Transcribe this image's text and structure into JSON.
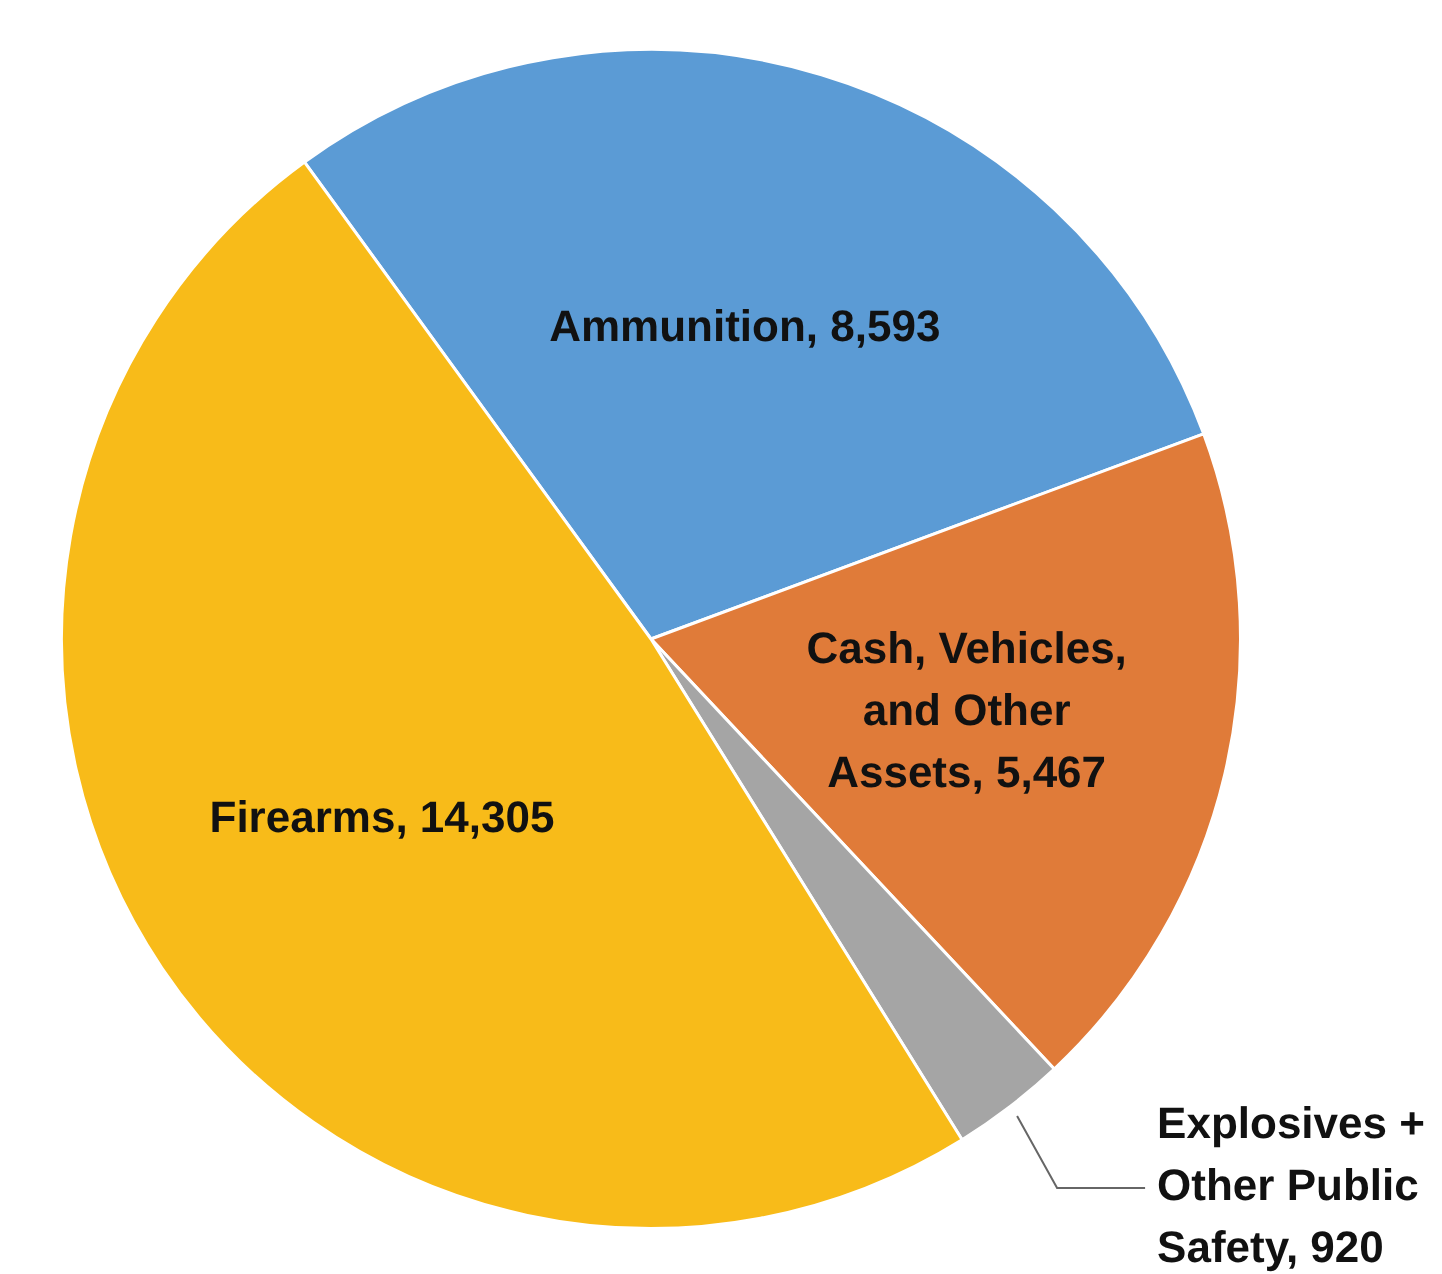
{
  "chart_data": {
    "type": "pie",
    "categories": [
      "Ammunition",
      "Cash, Vehicles, and Other Assets",
      "Explosives + Other Public Safety",
      "Firearms"
    ],
    "value_labels": [
      "8,593",
      "5,467",
      "920",
      "14,305"
    ],
    "values": [
      8593,
      5467,
      920,
      14305
    ],
    "colors": [
      "#5b9bd5",
      "#e07b39",
      "#a5a5a5",
      "#f8bb19"
    ],
    "legend": false
  }
}
